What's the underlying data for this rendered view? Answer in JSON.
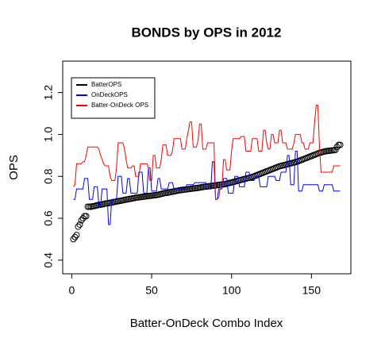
{
  "chart_data": {
    "type": "scatter",
    "title": "BONDS by OPS in 2012",
    "x_label": "Batter-OnDeck Combo Index",
    "y_label": "OPS",
    "x": [
      1,
      2,
      3,
      4,
      5,
      6,
      7,
      8,
      9,
      10,
      11,
      12,
      13,
      14,
      15,
      16,
      17,
      18,
      19,
      20,
      21,
      22,
      23,
      24,
      25,
      26,
      27,
      28,
      29,
      30,
      31,
      32,
      33,
      34,
      35,
      36,
      37,
      38,
      39,
      40,
      41,
      42,
      43,
      44,
      45,
      46,
      47,
      48,
      49,
      50,
      51,
      52,
      53,
      54,
      55,
      56,
      57,
      58,
      59,
      60,
      61,
      62,
      63,
      64,
      65,
      66,
      67,
      68,
      69,
      70,
      71,
      72,
      73,
      74,
      75,
      76,
      77,
      78,
      79,
      80,
      81,
      82,
      83,
      84,
      85,
      86,
      87,
      88,
      89,
      90,
      91,
      92,
      93,
      94,
      95,
      96,
      97,
      98,
      99,
      100,
      101,
      102,
      103,
      104,
      105,
      106,
      107,
      108,
      109,
      110,
      111,
      112,
      113,
      114,
      115,
      116,
      117,
      118,
      119,
      120,
      121,
      122,
      123,
      124,
      125,
      126,
      127,
      128,
      129,
      130,
      131,
      132,
      133,
      134,
      135,
      136,
      137,
      138,
      139,
      140,
      141,
      142,
      143,
      144,
      145,
      146,
      147,
      148,
      149,
      150,
      151,
      152,
      153,
      154,
      155,
      156,
      157,
      158,
      159,
      160,
      161,
      162,
      163,
      164,
      165,
      166,
      167,
      168
    ],
    "series": [
      {
        "name": "BatterOPS",
        "color": "#000000",
        "mark": "circle",
        "values": [
          0.5,
          0.51,
          0.52,
          0.56,
          0.57,
          0.59,
          0.6,
          0.61,
          0.61,
          0.655,
          0.655,
          0.655,
          0.657,
          0.658,
          0.66,
          0.662,
          0.664,
          0.665,
          0.666,
          0.668,
          0.67,
          0.671,
          0.672,
          0.674,
          0.675,
          0.677,
          0.678,
          0.68,
          0.681,
          0.683,
          0.684,
          0.686,
          0.687,
          0.689,
          0.69,
          0.692,
          0.693,
          0.695,
          0.696,
          0.698,
          0.699,
          0.7,
          0.701,
          0.702,
          0.703,
          0.704,
          0.705,
          0.706,
          0.707,
          0.708,
          0.709,
          0.71,
          0.711,
          0.712,
          0.714,
          0.716,
          0.718,
          0.72,
          0.721,
          0.722,
          0.724,
          0.725,
          0.727,
          0.728,
          0.73,
          0.731,
          0.733,
          0.734,
          0.735,
          0.736,
          0.737,
          0.738,
          0.739,
          0.74,
          0.741,
          0.742,
          0.743,
          0.744,
          0.745,
          0.746,
          0.748,
          0.749,
          0.75,
          0.751,
          0.752,
          0.753,
          0.754,
          0.755,
          0.756,
          0.757,
          0.758,
          0.759,
          0.76,
          0.761,
          0.762,
          0.763,
          0.765,
          0.767,
          0.769,
          0.771,
          0.773,
          0.775,
          0.777,
          0.779,
          0.781,
          0.783,
          0.785,
          0.787,
          0.789,
          0.791,
          0.793,
          0.795,
          0.797,
          0.8,
          0.803,
          0.806,
          0.809,
          0.812,
          0.815,
          0.818,
          0.821,
          0.824,
          0.827,
          0.83,
          0.833,
          0.836,
          0.839,
          0.842,
          0.845,
          0.848,
          0.85,
          0.852,
          0.854,
          0.856,
          0.858,
          0.86,
          0.862,
          0.864,
          0.866,
          0.868,
          0.87,
          0.873,
          0.876,
          0.879,
          0.882,
          0.885,
          0.888,
          0.891,
          0.894,
          0.897,
          0.9,
          0.903,
          0.906,
          0.909,
          0.912,
          0.914,
          0.916,
          0.918,
          0.92,
          0.921,
          0.922,
          0.923,
          0.924,
          0.925,
          0.926,
          0.94,
          0.95,
          0.95
        ]
      },
      {
        "name": "OnDeckOPS",
        "color": "#0000ff",
        "mark": "line",
        "values": [
          0.69,
          0.69,
          0.74,
          0.74,
          0.74,
          0.74,
          0.74,
          0.79,
          0.79,
          0.79,
          0.69,
          0.69,
          0.69,
          0.75,
          0.75,
          0.75,
          0.66,
          0.66,
          0.74,
          0.74,
          0.74,
          0.74,
          0.57,
          0.57,
          0.69,
          0.69,
          0.69,
          0.69,
          0.8,
          0.8,
          0.8,
          0.72,
          0.72,
          0.72,
          0.79,
          0.79,
          0.72,
          0.72,
          0.72,
          0.72,
          0.72,
          0.82,
          0.82,
          0.82,
          0.72,
          0.72,
          0.72,
          0.84,
          0.84,
          0.73,
          0.73,
          0.73,
          0.73,
          0.79,
          0.79,
          0.74,
          0.74,
          0.74,
          0.74,
          0.74,
          0.77,
          0.77,
          0.77,
          0.74,
          0.74,
          0.74,
          0.74,
          0.74,
          0.74,
          0.74,
          0.74,
          0.76,
          0.76,
          0.76,
          0.76,
          0.76,
          0.77,
          0.77,
          0.77,
          0.77,
          0.77,
          0.77,
          0.77,
          0.77,
          0.74,
          0.74,
          0.74,
          0.87,
          0.87,
          0.69,
          0.69,
          0.74,
          0.74,
          0.74,
          0.79,
          0.79,
          0.79,
          0.72,
          0.72,
          0.72,
          0.72,
          0.8,
          0.8,
          0.8,
          0.75,
          0.75,
          0.75,
          0.75,
          0.82,
          0.82,
          0.82,
          0.78,
          0.78,
          0.78,
          0.8,
          0.8,
          0.8,
          0.75,
          0.75,
          0.75,
          0.75,
          0.75,
          0.8,
          0.8,
          0.8,
          0.8,
          0.8,
          0.78,
          0.78,
          0.78,
          0.82,
          0.82,
          0.82,
          0.82,
          0.9,
          0.9,
          0.76,
          0.76,
          0.76,
          0.92,
          0.92,
          0.73,
          0.73,
          0.73,
          0.76,
          0.76,
          0.76,
          0.76,
          0.76,
          0.76,
          0.76,
          0.76,
          0.76,
          0.76,
          0.73,
          0.73,
          0.73,
          0.76,
          0.76,
          0.76,
          0.76,
          0.76,
          0.76,
          0.73,
          0.73,
          0.73,
          0.73,
          0.73
        ]
      },
      {
        "name": "Batter-OnDeck OPS",
        "color": "#ff0000",
        "mark": "line",
        "values": [
          0.75,
          0.76,
          0.86,
          0.86,
          0.86,
          0.86,
          0.87,
          0.87,
          0.9,
          0.94,
          0.94,
          0.94,
          0.94,
          0.94,
          0.94,
          0.94,
          0.93,
          0.9,
          0.88,
          0.86,
          0.85,
          0.85,
          0.85,
          0.8,
          0.78,
          0.78,
          0.78,
          0.84,
          0.96,
          0.96,
          0.96,
          0.96,
          0.93,
          0.88,
          0.84,
          0.84,
          0.84,
          0.85,
          0.85,
          0.8,
          0.8,
          0.8,
          0.86,
          0.86,
          0.86,
          0.86,
          0.86,
          0.84,
          0.78,
          0.78,
          0.9,
          0.9,
          0.84,
          0.84,
          0.84,
          0.88,
          0.95,
          0.95,
          0.95,
          0.9,
          0.9,
          0.9,
          0.92,
          0.98,
          0.98,
          0.98,
          0.98,
          0.98,
          0.93,
          0.93,
          0.93,
          0.98,
          1.02,
          1.06,
          1.06,
          0.94,
          0.94,
          0.94,
          0.97,
          1.05,
          1.05,
          0.93,
          0.93,
          0.93,
          0.96,
          0.96,
          0.96,
          0.96,
          0.96,
          0.69,
          0.69,
          0.7,
          0.75,
          0.75,
          0.88,
          0.88,
          0.83,
          0.83,
          0.83,
          0.92,
          0.98,
          0.98,
          0.98,
          0.98,
          0.98,
          0.99,
          0.99,
          0.99,
          0.92,
          0.92,
          0.92,
          0.92,
          0.98,
          0.98,
          0.98,
          0.98,
          0.92,
          0.92,
          0.92,
          1.02,
          1.02,
          0.96,
          0.93,
          0.93,
          1.0,
          1.0,
          0.96,
          0.96,
          0.96,
          1.02,
          1.02,
          0.96,
          0.96,
          0.96,
          0.93,
          0.93,
          0.93,
          0.93,
          0.96,
          1.0,
          1.0,
          1.0,
          1.0,
          0.96,
          0.96,
          0.93,
          0.93,
          0.93,
          0.96,
          0.96,
          0.96,
          1.06,
          1.14,
          1.14,
          0.95,
          0.82,
          0.82,
          0.82,
          0.82,
          0.82,
          0.82,
          0.82,
          0.82,
          0.85,
          0.85,
          0.85,
          0.85,
          0.85
        ]
      }
    ],
    "xlim": [
      -5.68,
      174.68
    ],
    "xticks": [
      0,
      50,
      100,
      150
    ],
    "ylim": [
      0.335,
      1.35
    ],
    "yticks": [
      0.4,
      0.6,
      0.8,
      {
        "value": 1,
        "label": "1.0"
      },
      1.2
    ],
    "legend": "topleft"
  }
}
